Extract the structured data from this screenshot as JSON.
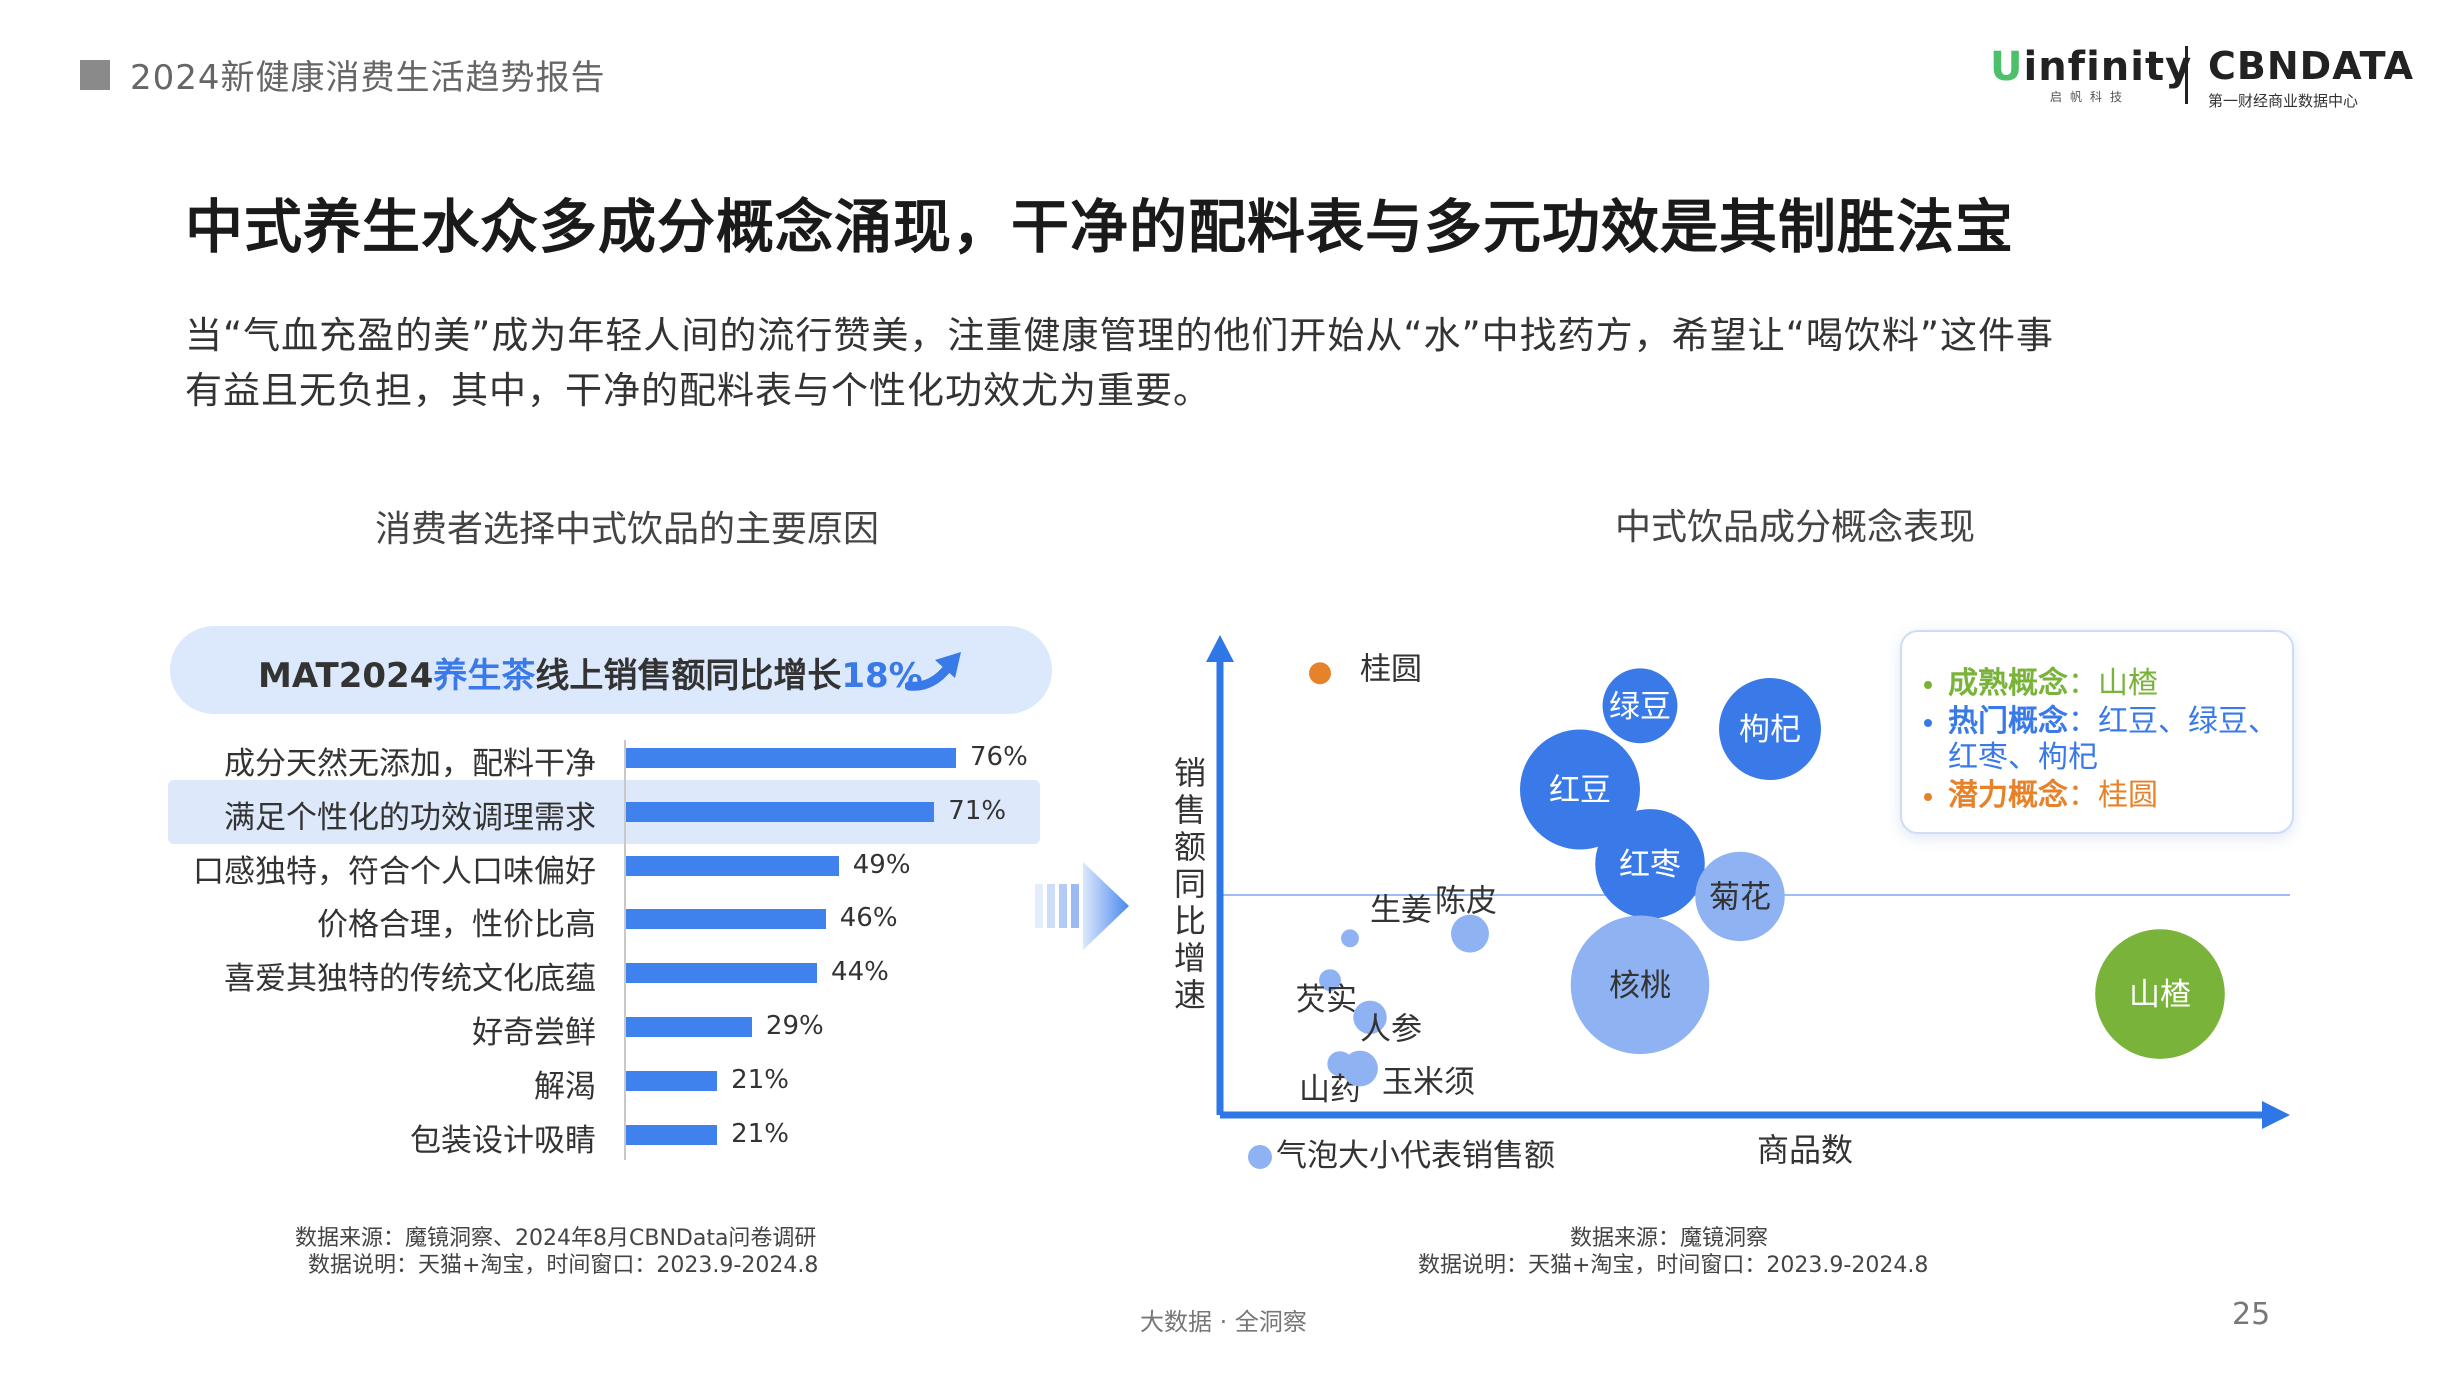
{
  "header": {
    "report_title": "2024新健康消费生活趋势报告",
    "logo_infinity_u": "U",
    "logo_infinity": "infinity",
    "logo_infinity_sub": "启帆科技",
    "logo_cbndata": "CBNDATA",
    "logo_cbndata_sub": "第一财经商业数据中心"
  },
  "page_title": "中式养生水众多成分概念涌现，干净的配料表与多元功效是其制胜法宝",
  "lead": {
    "line1": "当“气血充盈的美”成为年轻人间的流行赞美，注重健康管理的他们开始从“水”中找药方，希望让“喝饮料”这件事",
    "line2": "有益且无负担，其中，干净的配料表与个性化功效尤为重要。"
  },
  "chart_data": [
    {
      "type": "bar",
      "orientation": "horizontal",
      "title": "消费者选择中式饮品的主要原因",
      "callout": {
        "prefix": "MAT2024",
        "highlight1": "养生茶",
        "middle": "线上销售额同比增长",
        "highlight2": "18%"
      },
      "categories": [
        "成分天然无添加，配料干净",
        "满足个性化的功效调理需求",
        "口感独特，符合个人口味偏好",
        "价格合理，性价比高",
        "喜爱其独特的传统文化底蕴",
        "好奇尝鲜",
        "解渴",
        "包装设计吸睛"
      ],
      "values": [
        76,
        71,
        49,
        46,
        44,
        29,
        21,
        21
      ],
      "value_labels": [
        "76%",
        "71%",
        "49%",
        "46%",
        "44%",
        "29%",
        "21%",
        "21%"
      ],
      "highlighted_category": "满足个性化的功效调理需求",
      "source": [
        "数据来源：魔镜洞察、2024年8月CBNData问卷调研",
        "数据说明：天猫+淘宝，时间窗口：2023.9-2024.8"
      ],
      "colors": {
        "bar": "#3f82ee",
        "highlight_bg": "#dde8fa",
        "callout_bg": "#dce8fb"
      }
    },
    {
      "type": "scatter",
      "subtype": "bubble",
      "title": "中式饮品成分概念表现",
      "xlabel": "商品数",
      "ylabel": "销售额同比增速",
      "bubble_note": "气泡大小代表销售额",
      "points": [
        {
          "name": "桂圆",
          "x": 0.1,
          "y": 0.95,
          "size": 0.3,
          "group": "潜力概念"
        },
        {
          "name": "绿豆",
          "x": 0.42,
          "y": 0.88,
          "size": 3.5,
          "group": "热门概念"
        },
        {
          "name": "枸杞",
          "x": 0.55,
          "y": 0.83,
          "size": 6.5,
          "group": "热门概念"
        },
        {
          "name": "红豆",
          "x": 0.36,
          "y": 0.7,
          "size": 9.0,
          "group": "热门概念"
        },
        {
          "name": "红枣",
          "x": 0.43,
          "y": 0.54,
          "size": 7.5,
          "group": "热门概念"
        },
        {
          "name": "菊花",
          "x": 0.52,
          "y": 0.47,
          "size": 5.0,
          "group": "其他"
        },
        {
          "name": "陈皮",
          "x": 0.25,
          "y": 0.39,
          "size": 0.9,
          "group": "其他"
        },
        {
          "name": "生姜",
          "x": 0.13,
          "y": 0.38,
          "size": 0.2,
          "group": "其他"
        },
        {
          "name": "核桃",
          "x": 0.42,
          "y": 0.28,
          "size": 12.0,
          "group": "其他"
        },
        {
          "name": "山楂",
          "x": 0.94,
          "y": 0.26,
          "size": 10.5,
          "group": "成熟概念"
        },
        {
          "name": "芡实",
          "x": 0.11,
          "y": 0.29,
          "size": 0.3,
          "group": "其他"
        },
        {
          "name": "人参",
          "x": 0.15,
          "y": 0.21,
          "size": 0.7,
          "group": "其他"
        },
        {
          "name": "山药",
          "x": 0.12,
          "y": 0.11,
          "size": 0.4,
          "group": "其他"
        },
        {
          "name": "玉米须",
          "x": 0.14,
          "y": 0.1,
          "size": 0.8,
          "group": "其他"
        }
      ],
      "legend": [
        {
          "key": "成熟概念",
          "value": "山楂",
          "color": "#7ab33a"
        },
        {
          "key": "热门概念",
          "value": "红豆、绿豆、",
          "value2": "红枣、枸杞",
          "color": "#3a7ae8"
        },
        {
          "key": "潜力概念",
          "value": "桂圆",
          "color": "#e6822a"
        }
      ],
      "colors": {
        "hot": "#3a7ae8",
        "mature": "#7ab33a",
        "potential": "#e6822a",
        "other": "#8fb3f2",
        "axis": "#2f76e6",
        "refline": "#9dbdf2"
      },
      "source": [
        "数据来源：魔镜洞察",
        "数据说明：天猫+淘宝，时间窗口：2023.9-2024.8"
      ]
    }
  ],
  "footer": {
    "tagline": "大数据 · 全洞察",
    "page_number": "25"
  }
}
